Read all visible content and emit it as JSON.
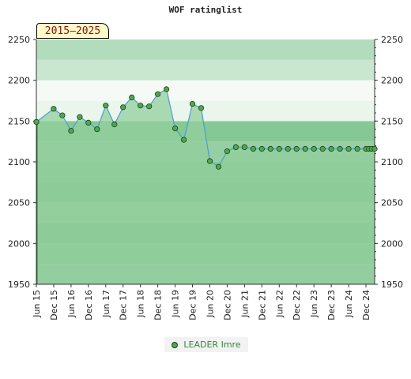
{
  "chart_data": {
    "type": "line",
    "title": "WOF ratinglist",
    "badge": "2015–2025",
    "ylim": [
      1950,
      2250
    ],
    "yticks": [
      "2250",
      "2200",
      "2150",
      "2100",
      "2050",
      "2000",
      "1950"
    ],
    "x_ticks": [
      "Jun 15",
      "Dec 15",
      "Jun 16",
      "Dec 16",
      "Jun 17",
      "Dec 17",
      "Jun 18",
      "Dec 18",
      "Jun 19",
      "Dec 19",
      "Jun 20",
      "Dec 20",
      "Jun 21",
      "Dec 21",
      "Jun 22",
      "Dec 22",
      "Jun 23",
      "Dec 23",
      "Jun 24",
      "Dec 24"
    ],
    "series": [
      {
        "name": "LEADER Imre",
        "color": "#4fa84f",
        "line_color": "#4a9fd0",
        "fill_color": "#93cf9c",
        "x": [
          "2015-06",
          "2015-12",
          "2016-03",
          "2016-06",
          "2016-09",
          "2016-12",
          "2017-03",
          "2017-06",
          "2017-09",
          "2017-12",
          "2018-03",
          "2018-06",
          "2018-09",
          "2018-12",
          "2019-03",
          "2019-06",
          "2019-09",
          "2019-12",
          "2020-03",
          "2020-06",
          "2020-09",
          "2020-12",
          "2021-03",
          "2021-06",
          "2021-09",
          "2021-12",
          "2022-03",
          "2022-06",
          "2022-09",
          "2022-12",
          "2023-03",
          "2023-06",
          "2023-09",
          "2023-12",
          "2024-03",
          "2024-06",
          "2024-09",
          "2024-12",
          "2025-01",
          "2025-02",
          "2025-03"
        ],
        "values": [
          2149,
          2165,
          2157,
          2138,
          2155,
          2148,
          2140,
          2169,
          2146,
          2167,
          2179,
          2169,
          2168,
          2183,
          2189,
          2141,
          2127,
          2171,
          2166,
          2101,
          2094,
          2113,
          2118,
          2118,
          2116,
          2116,
          2116,
          2116,
          2116,
          2116,
          2116,
          2116,
          2116,
          2116,
          2116,
          2116,
          2116,
          2116,
          2116,
          2116,
          2116
        ]
      }
    ]
  }
}
